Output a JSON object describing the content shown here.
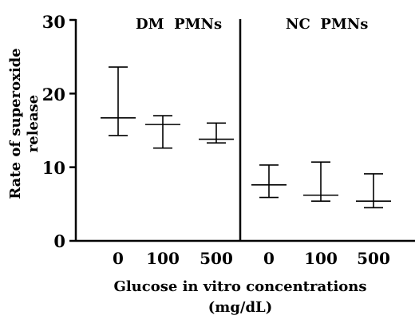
{
  "chart_data": {
    "type": "box",
    "ylabel_line1": "Rate of superoxide",
    "ylabel_line2": "release",
    "xlabel_line1": "Glucose in vitro concentrations",
    "xlabel_line2": "(mg/dL)",
    "ylim": [
      0,
      30
    ],
    "yticks": [
      "0",
      "10",
      "20",
      "30"
    ],
    "grid": false,
    "panels": [
      {
        "label": "DM  PMNs",
        "categories": [
          "0",
          "100",
          "500"
        ],
        "median": [
          16.7,
          15.8,
          13.8
        ],
        "lower": [
          14.3,
          12.6,
          13.3
        ],
        "upper": [
          23.6,
          17.0,
          16.0
        ]
      },
      {
        "label": "NC  PMNs",
        "categories": [
          "0",
          "100",
          "500"
        ],
        "median": [
          7.6,
          6.2,
          5.4
        ],
        "lower": [
          5.9,
          5.4,
          4.5
        ],
        "upper": [
          10.3,
          10.7,
          9.1
        ]
      }
    ]
  }
}
